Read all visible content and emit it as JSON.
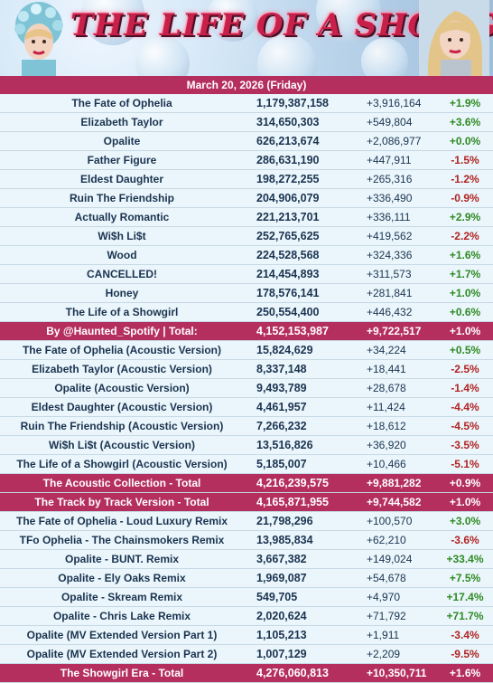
{
  "banner": {
    "title": "THE LIFE OF A SHOWGIRL"
  },
  "date_label": "March 20, 2026 (Friday)",
  "rows": [
    {
      "name": "The Fate of Ophelia",
      "total": "1,179,387,158",
      "gain": "+3,916,164",
      "pct": "+1.9%",
      "kind": "row"
    },
    {
      "name": "Elizabeth Taylor",
      "total": "314,650,303",
      "gain": "+549,804",
      "pct": "+3.6%",
      "kind": "row"
    },
    {
      "name": "Opalite",
      "total": "626,213,674",
      "gain": "+2,086,977",
      "pct": "+0.0%",
      "kind": "row"
    },
    {
      "name": "Father Figure",
      "total": "286,631,190",
      "gain": "+447,911",
      "pct": "-1.5%",
      "kind": "row"
    },
    {
      "name": "Eldest Daughter",
      "total": "198,272,255",
      "gain": "+265,316",
      "pct": "-1.2%",
      "kind": "row"
    },
    {
      "name": "Ruin The Friendship",
      "total": "204,906,079",
      "gain": "+336,490",
      "pct": "-0.9%",
      "kind": "row"
    },
    {
      "name": "Actually Romantic",
      "total": "221,213,701",
      "gain": "+336,111",
      "pct": "+2.9%",
      "kind": "row"
    },
    {
      "name": "Wi$h Li$t",
      "total": "252,765,625",
      "gain": "+419,562",
      "pct": "-2.2%",
      "kind": "row"
    },
    {
      "name": "Wood",
      "total": "224,528,568",
      "gain": "+324,336",
      "pct": "+1.6%",
      "kind": "row"
    },
    {
      "name": "CANCELLED!",
      "total": "214,454,893",
      "gain": "+311,573",
      "pct": "+1.7%",
      "kind": "row"
    },
    {
      "name": "Honey",
      "total": "178,576,141",
      "gain": "+281,841",
      "pct": "+1.0%",
      "kind": "row"
    },
    {
      "name": "The Life of a Showgirl",
      "total": "250,554,400",
      "gain": "+446,432",
      "pct": "+0.6%",
      "kind": "row"
    },
    {
      "name": "By @Haunted_Spotify | Total:",
      "total": "4,152,153,987",
      "gain": "+9,722,517",
      "pct": "+1.0%",
      "kind": "sum"
    },
    {
      "name": "The Fate of Ophelia (Acoustic Version)",
      "total": "15,824,629",
      "gain": "+34,224",
      "pct": "+0.5%",
      "kind": "row"
    },
    {
      "name": "Elizabeth Taylor (Acoustic Version)",
      "total": "8,337,148",
      "gain": "+18,441",
      "pct": "-2.5%",
      "kind": "row"
    },
    {
      "name": "Opalite (Acoustic Version)",
      "total": "9,493,789",
      "gain": "+28,678",
      "pct": "-1.4%",
      "kind": "row"
    },
    {
      "name": "Eldest Daughter (Acoustic Version)",
      "total": "4,461,957",
      "gain": "+11,424",
      "pct": "-4.4%",
      "kind": "row"
    },
    {
      "name": "Ruin The Friendship (Acoustic Version)",
      "total": "7,266,232",
      "gain": "+18,612",
      "pct": "-4.5%",
      "kind": "row"
    },
    {
      "name": "Wi$h Li$t (Acoustic Version)",
      "total": "13,516,826",
      "gain": "+36,920",
      "pct": "-3.5%",
      "kind": "row"
    },
    {
      "name": "The Life of a Showgirl (Acoustic Version)",
      "total": "5,185,007",
      "gain": "+10,466",
      "pct": "-5.1%",
      "kind": "row"
    },
    {
      "name": "The Acoustic Collection - Total",
      "total": "4,216,239,575",
      "gain": "+9,881,282",
      "pct": "+0.9%",
      "kind": "sum"
    },
    {
      "name": "The Track by Track Version - Total",
      "total": "4,165,871,955",
      "gain": "+9,744,582",
      "pct": "+1.0%",
      "kind": "sum"
    },
    {
      "name": "The Fate of Ophelia - Loud Luxury Remix",
      "total": "21,798,296",
      "gain": "+100,570",
      "pct": "+3.0%",
      "kind": "row"
    },
    {
      "name": "TFo Ophelia - The Chainsmokers Remix",
      "total": "13,985,834",
      "gain": "+62,210",
      "pct": "-3.6%",
      "kind": "row"
    },
    {
      "name": "Opalite - BUNT. Remix",
      "total": "3,667,382",
      "gain": "+149,024",
      "pct": "+33.4%",
      "kind": "row"
    },
    {
      "name": "Opalite - Ely Oaks Remix",
      "total": "1,969,087",
      "gain": "+54,678",
      "pct": "+7.5%",
      "kind": "row"
    },
    {
      "name": "Opalite - Skream Remix",
      "total": "549,705",
      "gain": "+4,970",
      "pct": "+17.4%",
      "kind": "row"
    },
    {
      "name": "Opalite - Chris Lake Remix",
      "total": "2,020,624",
      "gain": "+71,792",
      "pct": "+71.7%",
      "kind": "row"
    },
    {
      "name": "Opalite (MV Extended Version Part 1)",
      "total": "1,105,213",
      "gain": "+1,911",
      "pct": "-3.4%",
      "kind": "row"
    },
    {
      "name": "Opalite (MV Extended Version Part 2)",
      "total": "1,007,129",
      "gain": "+2,209",
      "pct": "-9.5%",
      "kind": "row"
    },
    {
      "name": "The Showgirl Era - Total",
      "total": "4,276,060,813",
      "gain": "+10,350,711",
      "pct": "+1.6%",
      "kind": "sum"
    }
  ],
  "colors": {
    "accent": "#b52f5e",
    "row_bg": "#eaf6fb",
    "text": "#1b3350",
    "positive": "#2f8a23",
    "negative": "#b12222"
  }
}
